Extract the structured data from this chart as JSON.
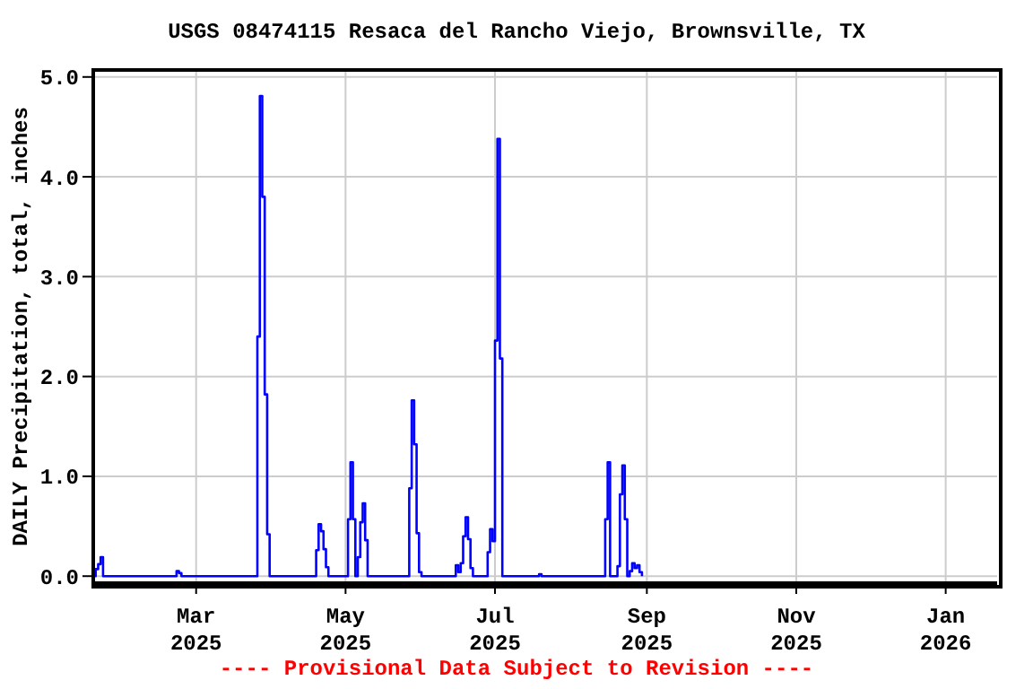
{
  "chart_data": {
    "type": "step",
    "title": "USGS 08474115 Resaca del Rancho Viejo, Brownsville, TX",
    "ylabel": "DAILY Precipitation, total, inches",
    "annotations": [
      "---- Provisional Data Subject to Revision ----"
    ],
    "x": [
      "2025-01-18",
      "2025-01-19",
      "2025-01-20",
      "2025-01-21",
      "2025-01-22",
      "2025-02-20",
      "2025-02-21",
      "2025-02-22",
      "2025-02-23",
      "2025-03-26",
      "2025-03-27",
      "2025-03-28",
      "2025-03-29",
      "2025-03-30",
      "2025-03-31",
      "2025-04-19",
      "2025-04-20",
      "2025-04-21",
      "2025-04-22",
      "2025-04-23",
      "2025-04-24",
      "2025-05-02",
      "2025-05-03",
      "2025-05-04",
      "2025-05-05",
      "2025-05-06",
      "2025-05-07",
      "2025-05-08",
      "2025-05-09",
      "2025-05-10",
      "2025-05-27",
      "2025-05-28",
      "2025-05-29",
      "2025-05-30",
      "2025-05-31",
      "2025-06-01",
      "2025-06-15",
      "2025-06-16",
      "2025-06-17",
      "2025-06-18",
      "2025-06-19",
      "2025-06-20",
      "2025-06-21",
      "2025-06-22",
      "2025-06-28",
      "2025-06-29",
      "2025-06-30",
      "2025-07-01",
      "2025-07-02",
      "2025-07-03",
      "2025-07-04",
      "2025-07-19",
      "2025-07-20",
      "2025-08-15",
      "2025-08-16",
      "2025-08-17",
      "2025-08-20",
      "2025-08-21",
      "2025-08-22",
      "2025-08-23",
      "2025-08-24",
      "2025-08-25",
      "2025-08-26",
      "2025-08-27",
      "2025-08-28",
      "2025-08-29",
      "2025-08-30"
    ],
    "series": [
      {
        "color": "#0000ff",
        "values": [
          0,
          0.07,
          0.12,
          0.19,
          0,
          0,
          0.05,
          0.03,
          0,
          2.4,
          4.81,
          3.8,
          1.82,
          0.42,
          0,
          0.26,
          0.52,
          0.45,
          0.27,
          0.09,
          0,
          0.57,
          1.14,
          0.57,
          0,
          0.19,
          0.54,
          0.73,
          0.36,
          0,
          0.88,
          1.76,
          1.32,
          0.43,
          0.04,
          0,
          0.11,
          0.04,
          0.13,
          0.4,
          0.59,
          0.37,
          0.08,
          0,
          0.24,
          0.47,
          0.35,
          2.36,
          4.38,
          2.18,
          0,
          0.02,
          0,
          0.57,
          1.14,
          0,
          0.1,
          0.82,
          1.11,
          0.57,
          0,
          0.05,
          0.13,
          0.08,
          0.11,
          0.04,
          0
        ]
      }
    ],
    "xlim": [
      "2025-01-18",
      "2026-01-22"
    ],
    "xticks": [
      {
        "value": "2025-03-01",
        "label": "Mar 2025"
      },
      {
        "value": "2025-05-01",
        "label": "May 2025"
      },
      {
        "value": "2025-07-01",
        "label": "Jul 2025"
      },
      {
        "value": "2025-09-01",
        "label": "Sep 2025"
      },
      {
        "value": "2025-11-01",
        "label": "Nov 2025"
      },
      {
        "value": "2026-01-01",
        "label": "Jan 2026"
      }
    ],
    "ylim": [
      -0.07,
      5.07
    ],
    "yticks": [
      {
        "value": 0,
        "label": "0.0"
      },
      {
        "value": 1,
        "label": "1.0"
      },
      {
        "value": 2,
        "label": "2.0"
      },
      {
        "value": 3,
        "label": "3.0"
      },
      {
        "value": 4,
        "label": "4.0"
      },
      {
        "value": 5,
        "label": "5.0"
      }
    ],
    "grid": true,
    "line_style": "solid",
    "marker": "none"
  }
}
